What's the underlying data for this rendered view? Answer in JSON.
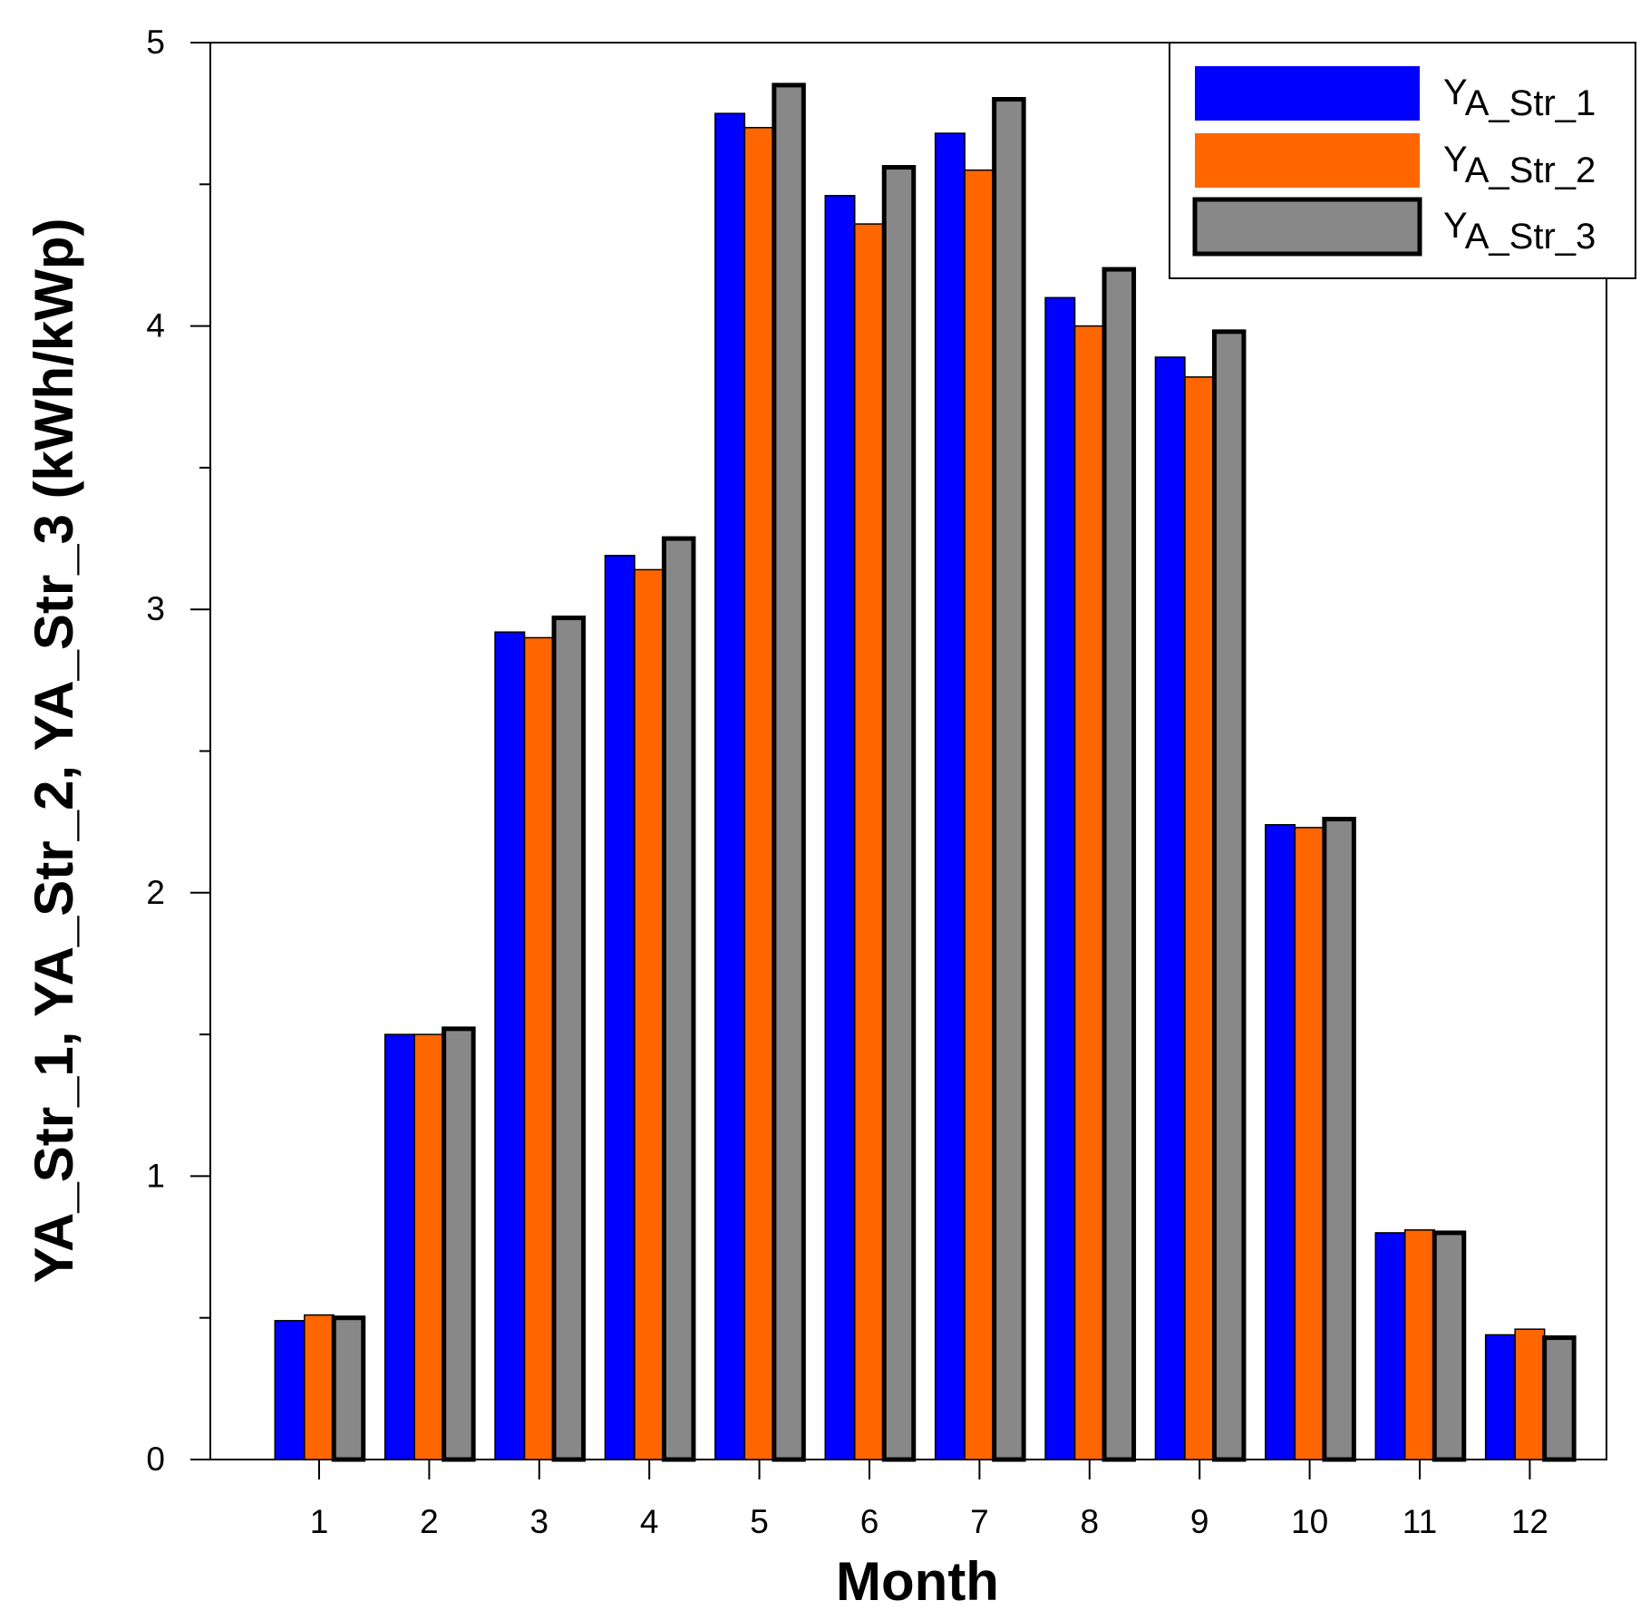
{
  "chart_data": {
    "type": "bar",
    "title": "",
    "xlabel": "Month",
    "ylabel": "YA_Str_1, YA_Str_2, YA_Str_3 (kWh/kWp)",
    "categories": [
      "1",
      "2",
      "3",
      "4",
      "5",
      "6",
      "7",
      "8",
      "9",
      "10",
      "11",
      "12"
    ],
    "ylim": [
      0,
      5
    ],
    "yticks": [
      "0",
      "1",
      "2",
      "3",
      "4",
      "5"
    ],
    "grid": false,
    "legend_position": "top-right",
    "series": [
      {
        "name": "YA_Str_1",
        "legend_main": "Y",
        "legend_sub": "A_Str_1",
        "color": "#0000ff",
        "values": [
          0.49,
          1.5,
          2.92,
          3.19,
          4.75,
          4.46,
          4.68,
          4.1,
          3.89,
          2.24,
          0.8,
          0.44
        ]
      },
      {
        "name": "YA_Str_2",
        "legend_main": "Y",
        "legend_sub": "A_Str_2",
        "color": "#ff6600",
        "values": [
          0.51,
          1.5,
          2.9,
          3.14,
          4.7,
          4.36,
          4.55,
          4.0,
          3.82,
          2.23,
          0.81,
          0.46
        ]
      },
      {
        "name": "YA_Str_3",
        "legend_main": "Y",
        "legend_sub": "A_Str_3",
        "color": "#888888",
        "values": [
          0.5,
          1.52,
          2.97,
          3.25,
          4.85,
          4.56,
          4.8,
          4.2,
          3.98,
          2.26,
          0.8,
          0.43
        ]
      }
    ]
  }
}
